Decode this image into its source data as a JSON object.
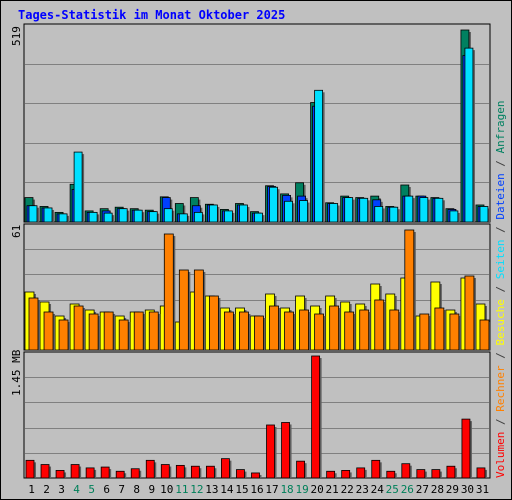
{
  "chart_data": [
    {
      "type": "bar",
      "title": "Tages-Statistik im Monat Oktober 2025",
      "categories": [
        "1",
        "2",
        "3",
        "4",
        "5",
        "6",
        "7",
        "8",
        "9",
        "10",
        "11",
        "12",
        "13",
        "14",
        "15",
        "16",
        "17",
        "18",
        "19",
        "20",
        "21",
        "22",
        "23",
        "24",
        "25",
        "26",
        "27",
        "28",
        "29",
        "30",
        "31"
      ],
      "weekend_days": [
        "4",
        "5",
        "11",
        "12",
        "18",
        "19",
        "25",
        "26"
      ],
      "ymax_label": "519",
      "ylim": [
        0,
        519
      ],
      "series": [
        {
          "name": "Anfragen",
          "color": "#008060",
          "values": [
            66,
            42,
            26,
            102,
            30,
            36,
            40,
            36,
            32,
            68,
            50,
            66,
            48,
            34,
            50,
            28,
            98,
            76,
            106,
            323,
            52,
            70,
            66,
            70,
            42,
            100,
            70,
            66,
            36,
            519,
            46
          ]
        },
        {
          "name": "Dateien",
          "color": "#0040ff",
          "values": [
            44,
            38,
            22,
            88,
            26,
            30,
            36,
            32,
            28,
            66,
            22,
            44,
            46,
            30,
            46,
            24,
            96,
            72,
            70,
            313,
            50,
            66,
            64,
            60,
            40,
            70,
            70,
            64,
            34,
            450,
            42
          ]
        },
        {
          "name": "Seiten",
          "color": "#00e0ff",
          "values": [
            44,
            38,
            22,
            189,
            26,
            24,
            36,
            32,
            28,
            36,
            22,
            26,
            46,
            30,
            46,
            24,
            94,
            56,
            58,
            356,
            50,
            66,
            64,
            42,
            40,
            70,
            66,
            64,
            30,
            470,
            42
          ]
        }
      ]
    },
    {
      "type": "bar",
      "ymax_label": "61",
      "ylim": [
        0,
        61
      ],
      "series": [
        {
          "name": "Besuche",
          "color": "#ffff00",
          "values": [
            29,
            24,
            17,
            23,
            20,
            19,
            17,
            19,
            20,
            22,
            14,
            29,
            27,
            21,
            21,
            17,
            28,
            21,
            27,
            22,
            27,
            24,
            23,
            33,
            28,
            36,
            17,
            34,
            20,
            36,
            23
          ]
        },
        {
          "name": "Rechner",
          "color": "#ff8000",
          "values": [
            26,
            19,
            15,
            22,
            18,
            19,
            15,
            19,
            19,
            58,
            40,
            40,
            27,
            19,
            19,
            17,
            22,
            19,
            20,
            18,
            22,
            19,
            20,
            25,
            20,
            60,
            18,
            21,
            18,
            37,
            15
          ]
        }
      ]
    },
    {
      "type": "bar",
      "ymax_label": "1.45 MB",
      "ylim": [
        0,
        1.45
      ],
      "series": [
        {
          "name": "Volumen",
          "color": "#ff0000",
          "values": [
            0.21,
            0.16,
            0.09,
            0.16,
            0.12,
            0.13,
            0.08,
            0.11,
            0.21,
            0.16,
            0.15,
            0.14,
            0.14,
            0.23,
            0.1,
            0.06,
            0.63,
            0.66,
            0.2,
            1.45,
            0.08,
            0.09,
            0.12,
            0.21,
            0.08,
            0.17,
            0.1,
            0.1,
            0.14,
            0.7,
            0.12
          ]
        }
      ]
    }
  ]
}
